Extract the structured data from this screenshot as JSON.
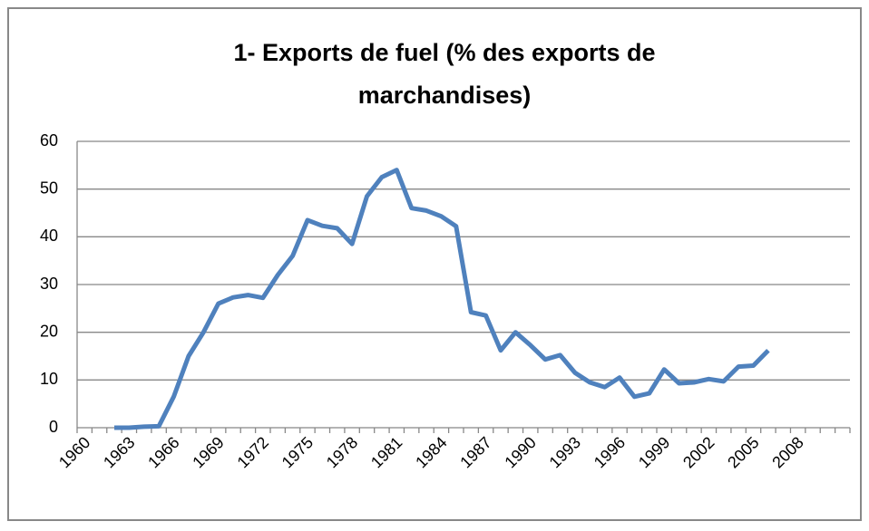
{
  "chart_data": {
    "type": "line",
    "title": [
      "1- Exports de fuel (% des exports de",
      "marchandises)"
    ],
    "categories": [
      "1960",
      null,
      null,
      "1963",
      null,
      null,
      "1966",
      null,
      null,
      "1969",
      null,
      null,
      "1972",
      null,
      null,
      "1975",
      null,
      null,
      "1978",
      null,
      null,
      "1981",
      null,
      null,
      "1984",
      null,
      null,
      "1987",
      null,
      null,
      "1990",
      null,
      null,
      "1993",
      null,
      null,
      "1996",
      null,
      null,
      "1999",
      null,
      null,
      "2002",
      null,
      null,
      "2005",
      null,
      null,
      "2008",
      null,
      null,
      null
    ],
    "series": [
      {
        "name": "Exports de fuel",
        "color": "#4f81bd",
        "values": [
          null,
          null,
          0,
          0,
          0.2,
          0.3,
          6.5,
          15,
          20,
          26,
          27.3,
          27.8,
          27.2,
          32,
          36,
          43.5,
          42.3,
          41.8,
          38.5,
          48.5,
          52.5,
          54,
          46,
          45.5,
          44.3,
          42.2,
          24.2,
          23.5,
          16.2,
          20,
          17.3,
          14.3,
          15.2,
          11.5,
          9.5,
          8.5,
          10.5,
          6.5,
          7.2,
          12.2,
          9.3,
          9.5,
          10.2,
          9.7,
          12.8,
          13,
          16.2,
          null,
          null,
          null,
          null,
          null
        ]
      }
    ],
    "ylim": [
      0,
      60
    ],
    "yticks": [
      0,
      10,
      20,
      30,
      40,
      50,
      60
    ],
    "grid": true
  }
}
